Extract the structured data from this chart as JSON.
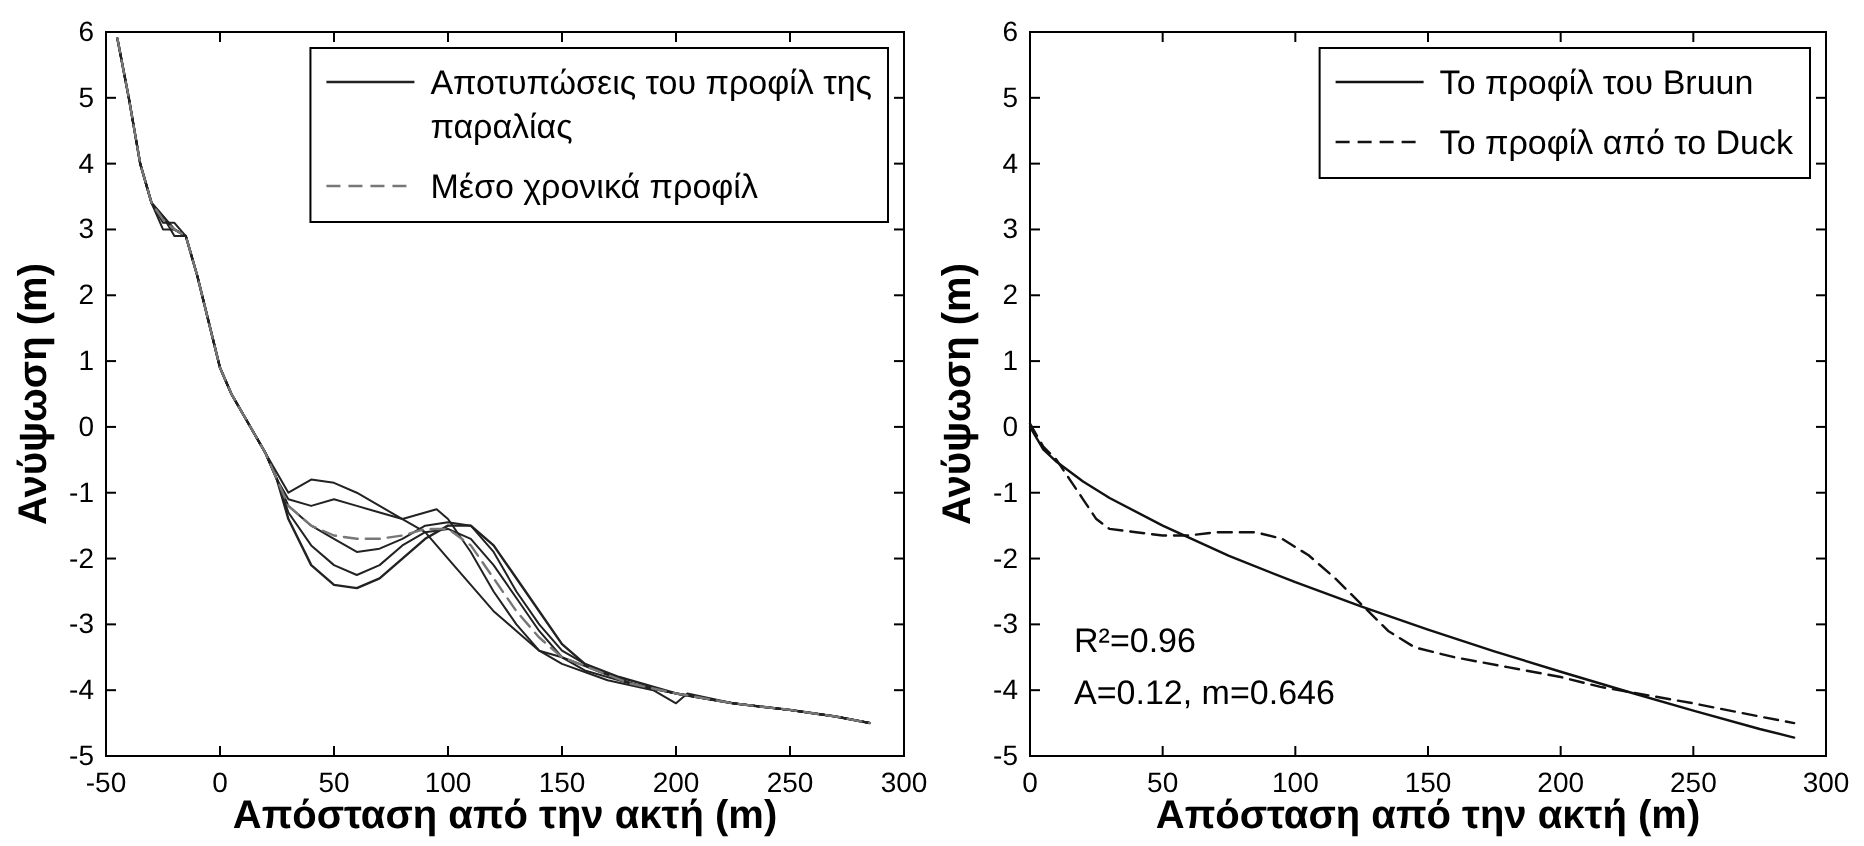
{
  "chart_data": [
    {
      "type": "line",
      "xlabel": "Απόσταση από την ακτή (m)",
      "ylabel": "Ανύψωση  (m)",
      "xlim": [
        -50,
        300
      ],
      "ylim": [
        -5,
        6
      ],
      "xticks": [
        -50,
        0,
        50,
        100,
        150,
        200,
        250,
        300
      ],
      "yticks": [
        -5,
        -4,
        -3,
        -2,
        -1,
        0,
        1,
        2,
        3,
        4,
        5,
        6
      ],
      "legend": "top right",
      "grid": false,
      "series": [
        {
          "name": "Αποτυπώσεις του προφίλ της παραλίας",
          "color": "#222222",
          "line_style": "solid",
          "x": [
            -45,
            -40,
            -35,
            -30,
            -25,
            -20,
            -15,
            -10,
            -5,
            0,
            5,
            10,
            15,
            20,
            25,
            30,
            40,
            50,
            60,
            70,
            80,
            90,
            100,
            110,
            120,
            130,
            140,
            150,
            160,
            175,
            200,
            225,
            250,
            270,
            285
          ],
          "values": [
            5.9,
            5,
            4,
            3.4,
            3.2,
            3.0,
            2.9,
            2.3,
            1.6,
            0.9,
            0.5,
            0.2,
            -0.1,
            -0.4,
            -0.8,
            -1.4,
            -2.1,
            -2.4,
            -2.45,
            -2.3,
            -2.0,
            -1.7,
            -1.5,
            -1.5,
            -1.8,
            -2.3,
            -2.8,
            -3.3,
            -3.6,
            -3.8,
            -4.05,
            -4.2,
            -4.3,
            -4.4,
            -4.5
          ]
        },
        {
          "color": "#222222",
          "line_style": "solid",
          "x": [
            -45,
            -40,
            -35,
            -30,
            -25,
            -20,
            -15,
            -10,
            -5,
            0,
            5,
            10,
            15,
            20,
            25,
            30,
            40,
            50,
            60,
            70,
            80,
            90,
            100,
            110,
            120,
            130,
            140,
            150,
            165,
            180,
            200,
            225,
            250,
            270,
            285
          ],
          "values": [
            5.9,
            5,
            4,
            3.4,
            3.1,
            3.1,
            2.9,
            2.3,
            1.6,
            0.9,
            0.5,
            0.2,
            -0.1,
            -0.4,
            -0.7,
            -1.0,
            -0.8,
            -0.85,
            -1.0,
            -1.2,
            -1.4,
            -1.6,
            -2.0,
            -2.4,
            -2.8,
            -3.1,
            -3.4,
            -3.5,
            -3.7,
            -3.9,
            -4.05,
            -4.2,
            -4.3,
            -4.4,
            -4.5
          ]
        },
        {
          "color": "#222222",
          "line_style": "solid",
          "x": [
            -45,
            -40,
            -35,
            -30,
            -25,
            -20,
            -15,
            -10,
            -5,
            0,
            5,
            10,
            15,
            20,
            25,
            30,
            40,
            50,
            60,
            70,
            80,
            90,
            95,
            100,
            110,
            120,
            130,
            140,
            150,
            170,
            190,
            200,
            205,
            225,
            250,
            270,
            285
          ],
          "values": [
            5.9,
            5,
            4,
            3.4,
            3.0,
            3.0,
            2.9,
            2.3,
            1.6,
            0.9,
            0.5,
            0.2,
            -0.1,
            -0.4,
            -0.8,
            -1.1,
            -1.2,
            -1.1,
            -1.2,
            -1.3,
            -1.4,
            -1.3,
            -1.25,
            -1.4,
            -1.9,
            -2.5,
            -3.0,
            -3.4,
            -3.6,
            -3.85,
            -4.0,
            -4.2,
            -4.05,
            -4.2,
            -4.3,
            -4.4,
            -4.5
          ]
        },
        {
          "color": "#222222",
          "line_style": "solid",
          "x": [
            -45,
            -40,
            -35,
            -30,
            -25,
            -20,
            -15,
            -10,
            -5,
            0,
            5,
            10,
            15,
            20,
            25,
            30,
            40,
            50,
            60,
            70,
            80,
            90,
            100,
            110,
            120,
            130,
            140,
            150,
            160,
            180,
            200,
            225,
            250,
            270,
            285
          ],
          "values": [
            5.9,
            5,
            4,
            3.4,
            3.2,
            2.9,
            2.9,
            2.3,
            1.6,
            0.9,
            0.5,
            0.2,
            -0.1,
            -0.4,
            -0.8,
            -1.3,
            -1.8,
            -2.1,
            -2.25,
            -2.1,
            -1.8,
            -1.6,
            -1.55,
            -1.7,
            -2.1,
            -2.6,
            -3.1,
            -3.5,
            -3.7,
            -3.9,
            -4.05,
            -4.2,
            -4.3,
            -4.4,
            -4.5
          ]
        },
        {
          "color": "#222222",
          "line_style": "solid",
          "x": [
            -45,
            -40,
            -35,
            -30,
            -25,
            -20,
            -15,
            -10,
            -5,
            0,
            5,
            10,
            15,
            20,
            25,
            30,
            40,
            50,
            60,
            70,
            80,
            90,
            100,
            110,
            120,
            130,
            140,
            150,
            165,
            185,
            200,
            225,
            250,
            270,
            285
          ],
          "values": [
            5.9,
            5,
            4,
            3.4,
            3.2,
            3.0,
            2.9,
            2.3,
            1.6,
            0.9,
            0.5,
            0.2,
            -0.1,
            -0.4,
            -0.8,
            -1.2,
            -1.5,
            -1.7,
            -1.9,
            -1.85,
            -1.7,
            -1.5,
            -1.45,
            -1.5,
            -1.9,
            -2.5,
            -3.0,
            -3.4,
            -3.7,
            -3.95,
            -4.05,
            -4.2,
            -4.3,
            -4.4,
            -4.5
          ]
        },
        {
          "name": "Μέσο χρονικά προφίλ",
          "color": "#777777",
          "line_style": "dashed",
          "x": [
            -45,
            -40,
            -35,
            -30,
            -25,
            -20,
            -15,
            -10,
            -5,
            0,
            5,
            10,
            15,
            20,
            25,
            30,
            40,
            50,
            60,
            70,
            80,
            90,
            100,
            110,
            120,
            130,
            140,
            150,
            165,
            180,
            200,
            225,
            250,
            270,
            285
          ],
          "values": [
            5.9,
            5,
            4,
            3.4,
            3.15,
            3.0,
            2.9,
            2.3,
            1.6,
            0.9,
            0.5,
            0.2,
            -0.1,
            -0.4,
            -0.8,
            -1.2,
            -1.5,
            -1.65,
            -1.7,
            -1.7,
            -1.65,
            -1.55,
            -1.55,
            -1.8,
            -2.3,
            -2.8,
            -3.2,
            -3.5,
            -3.7,
            -3.9,
            -4.05,
            -4.2,
            -4.3,
            -4.4,
            -4.5
          ]
        }
      ]
    },
    {
      "type": "line",
      "xlabel": "Απόσταση από την ακτή (m)",
      "ylabel": "Ανύψωση  (m)",
      "xlim": [
        0,
        300
      ],
      "ylim": [
        -5,
        6
      ],
      "xticks": [
        0,
        50,
        100,
        150,
        200,
        250,
        300
      ],
      "yticks": [
        -5,
        -4,
        -3,
        -2,
        -1,
        0,
        1,
        2,
        3,
        4,
        5,
        6
      ],
      "legend": "top right",
      "grid": false,
      "annotations": [
        "R²=0.96",
        "A=0.12, m=0.646"
      ],
      "series": [
        {
          "name": "Το προφίλ του Bruun",
          "color": "#111111",
          "line_style": "solid",
          "x": [
            0,
            5,
            10,
            20,
            30,
            50,
            75,
            100,
            125,
            150,
            175,
            200,
            225,
            250,
            275,
            288
          ],
          "values": [
            0,
            -0.34,
            -0.53,
            -0.83,
            -1.08,
            -1.5,
            -1.96,
            -2.36,
            -2.73,
            -3.08,
            -3.41,
            -3.72,
            -4.02,
            -4.31,
            -4.59,
            -4.72
          ]
        },
        {
          "name": "Το προφίλ από το Duck",
          "color": "#111111",
          "line_style": "dashed",
          "x": [
            0,
            5,
            10,
            15,
            20,
            25,
            30,
            40,
            50,
            60,
            70,
            85,
            95,
            105,
            115,
            125,
            135,
            145,
            160,
            180,
            200,
            215,
            250,
            275,
            288
          ],
          "values": [
            0.05,
            -0.3,
            -0.5,
            -0.8,
            -1.1,
            -1.4,
            -1.55,
            -1.6,
            -1.65,
            -1.65,
            -1.6,
            -1.6,
            -1.7,
            -1.95,
            -2.3,
            -2.7,
            -3.1,
            -3.35,
            -3.5,
            -3.65,
            -3.8,
            -3.95,
            -4.2,
            -4.4,
            -4.5
          ]
        }
      ]
    }
  ]
}
